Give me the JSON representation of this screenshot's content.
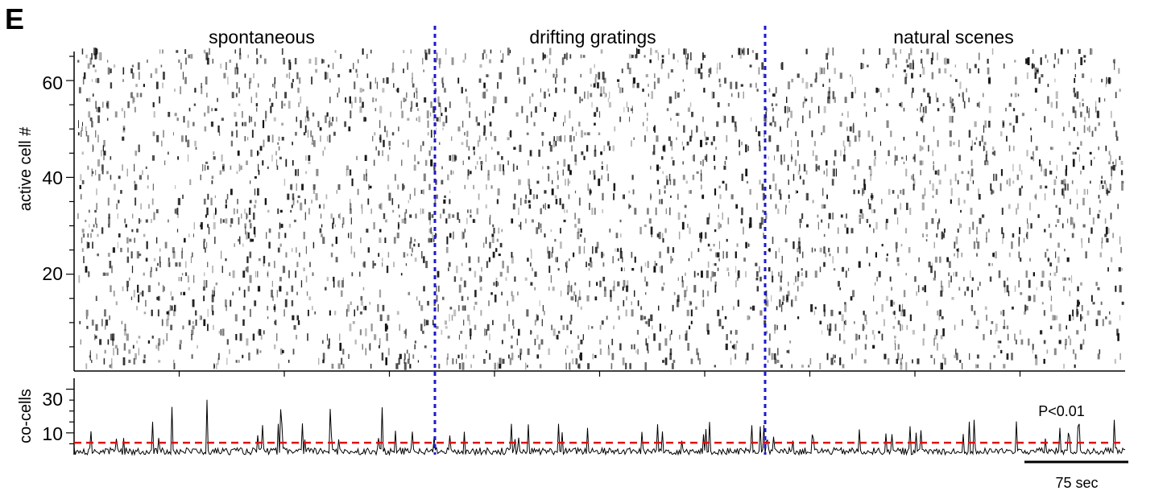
{
  "panel_label": "E",
  "colors": {
    "raster": "#111111",
    "divider": "#1a1acc",
    "threshold": "#dd1111",
    "trace": "#000000"
  },
  "chart_data": [
    {
      "type": "heatmap",
      "description_kind": "raster",
      "conditions": [
        "spontaneous",
        "drifting gratings",
        "natural scenes"
      ],
      "ylabel": "active cell #",
      "yticks": [
        20,
        40,
        60
      ],
      "ylim": [
        0,
        66
      ],
      "grid": false
    },
    {
      "type": "line",
      "ylabel": "co-cells",
      "yticks": [
        10,
        30
      ],
      "ylim": [
        0,
        35
      ],
      "threshold": 5.5,
      "annotation": "P<0.01",
      "scalebar": {
        "label": "75 sec",
        "value": 75
      },
      "grid": false
    }
  ]
}
